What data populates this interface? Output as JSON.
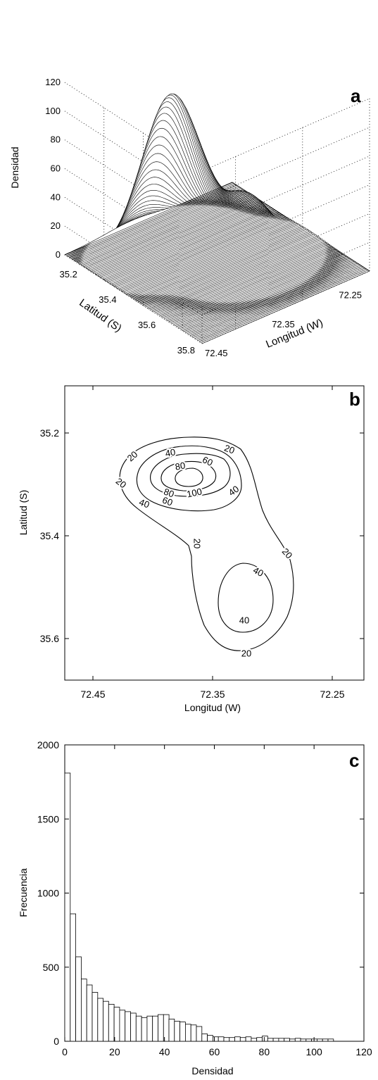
{
  "chart_data": [
    {
      "panel": "a",
      "type": "surface",
      "zlabel": "Densidad",
      "ylabel": "Latitud (S)",
      "xlabel": "Longitud (W)",
      "zticks": [
        "0",
        "20",
        "40",
        "60",
        "80",
        "100",
        "120"
      ],
      "yticks": [
        "35.2",
        "35.4",
        "35.6",
        "35.8"
      ],
      "xticks": [
        "72.45",
        "72.35",
        "72.25"
      ],
      "zlim": [
        0,
        120
      ],
      "grid": true,
      "peaks": [
        {
          "lon": 72.35,
          "lat": 35.3,
          "density": 108
        },
        {
          "lon": 72.3,
          "lat": 35.5,
          "density": 46
        }
      ]
    },
    {
      "panel": "b",
      "type": "contour",
      "xlabel": "Longitud (W)",
      "ylabel": "Latitud (S)",
      "xticks": [
        "72.45",
        "72.35",
        "72.25"
      ],
      "yticks": [
        "35.2",
        "35.4",
        "35.6"
      ],
      "levels": [
        "20",
        "40",
        "60",
        "80",
        "100"
      ],
      "contour_labels": [
        "20",
        "20",
        "20",
        "20",
        "20",
        "20",
        "40",
        "40",
        "40",
        "40",
        "40",
        "60",
        "60",
        "80",
        "80",
        "100"
      ]
    },
    {
      "panel": "c",
      "type": "bar",
      "xlabel": "Densidad",
      "ylabel": "Frecuencia",
      "xlim": [
        0,
        120
      ],
      "ylim": [
        0,
        2000
      ],
      "xticks": [
        "0",
        "20",
        "40",
        "60",
        "80",
        "100",
        "120"
      ],
      "yticks": [
        "0",
        "500",
        "1000",
        "1500",
        "2000"
      ],
      "bin_width": 2.2,
      "values": [
        1810,
        860,
        570,
        420,
        380,
        330,
        290,
        270,
        250,
        230,
        210,
        200,
        190,
        170,
        160,
        170,
        170,
        180,
        180,
        150,
        135,
        130,
        115,
        110,
        100,
        50,
        40,
        30,
        30,
        25,
        25,
        30,
        25,
        30,
        20,
        25,
        35,
        20,
        20,
        20,
        20,
        15,
        20,
        15,
        15,
        15,
        15,
        15,
        15
      ]
    }
  ]
}
